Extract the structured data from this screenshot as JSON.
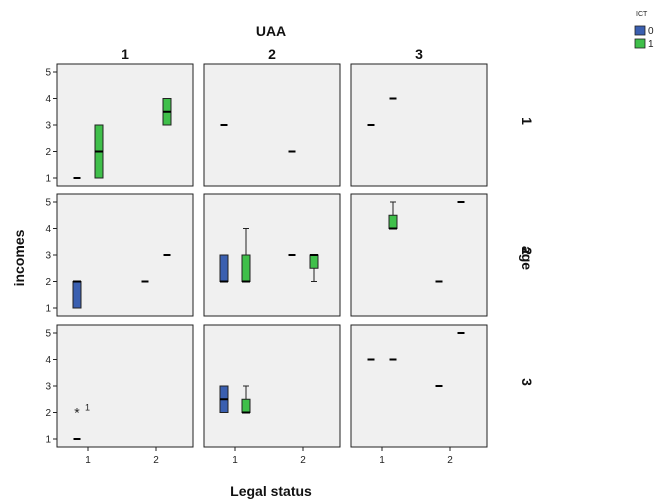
{
  "chart_data": {
    "type": "boxplot",
    "title": "",
    "column_title": "UAA",
    "row_title": "age",
    "xlabel": "Legal status",
    "ylabel": "incomes",
    "ylim": [
      1,
      5
    ],
    "yticks": [
      1,
      2,
      3,
      4,
      5
    ],
    "xticks": [
      1,
      2
    ],
    "grid": false,
    "legend": {
      "title": "ICT",
      "position": "top-right",
      "entries": [
        {
          "label": "0",
          "color": "#3a5fb0"
        },
        {
          "label": "1",
          "color": "#3fbf4a"
        }
      ]
    },
    "columns": [
      "1",
      "2",
      "3"
    ],
    "rows": [
      "1",
      "2",
      "3"
    ],
    "panels": [
      {
        "row": "1",
        "col": "1",
        "boxes": [
          {
            "legal_status": 1,
            "ict": "0",
            "min": 1,
            "q1": 1,
            "median": 1,
            "q3": 1,
            "max": 1
          },
          {
            "legal_status": 1,
            "ict": "1",
            "min": 1,
            "q1": 1,
            "median": 2,
            "q3": 3,
            "max": 3
          },
          {
            "legal_status": 2,
            "ict": "1",
            "min": 3,
            "q1": 3,
            "median": 3.5,
            "q3": 4,
            "max": 4
          }
        ]
      },
      {
        "row": "1",
        "col": "2",
        "boxes": [
          {
            "legal_status": 1,
            "ict": "0",
            "min": 3,
            "q1": 3,
            "median": 3,
            "q3": 3,
            "max": 3
          },
          {
            "legal_status": 2,
            "ict": "0",
            "min": 2,
            "q1": 2,
            "median": 2,
            "q3": 2,
            "max": 2
          }
        ]
      },
      {
        "row": "1",
        "col": "3",
        "boxes": [
          {
            "legal_status": 1,
            "ict": "0",
            "min": 3,
            "q1": 3,
            "median": 3,
            "q3": 3,
            "max": 3
          },
          {
            "legal_status": 1,
            "ict": "1",
            "min": 4,
            "q1": 4,
            "median": 4,
            "q3": 4,
            "max": 4
          }
        ]
      },
      {
        "row": "2",
        "col": "1",
        "boxes": [
          {
            "legal_status": 1,
            "ict": "0",
            "min": 1,
            "q1": 1,
            "median": 2,
            "q3": 2,
            "max": 2
          },
          {
            "legal_status": 2,
            "ict": "0",
            "min": 2,
            "q1": 2,
            "median": 2,
            "q3": 2,
            "max": 2
          },
          {
            "legal_status": 2,
            "ict": "1",
            "min": 3,
            "q1": 3,
            "median": 3,
            "q3": 3,
            "max": 3
          }
        ]
      },
      {
        "row": "2",
        "col": "2",
        "boxes": [
          {
            "legal_status": 1,
            "ict": "0",
            "min": 2,
            "q1": 2,
            "median": 2,
            "q3": 3,
            "max": 3
          },
          {
            "legal_status": 1,
            "ict": "1",
            "min": 2,
            "q1": 2,
            "median": 2,
            "q3": 3,
            "max": 4
          },
          {
            "legal_status": 2,
            "ict": "0",
            "min": 3,
            "q1": 3,
            "median": 3,
            "q3": 3,
            "max": 3
          },
          {
            "legal_status": 2,
            "ict": "1",
            "min": 2,
            "q1": 2.5,
            "median": 3,
            "q3": 3,
            "max": 3
          }
        ]
      },
      {
        "row": "2",
        "col": "3",
        "boxes": [
          {
            "legal_status": 1,
            "ict": "1",
            "min": 4,
            "q1": 4,
            "median": 4,
            "q3": 4.5,
            "max": 5
          },
          {
            "legal_status": 2,
            "ict": "0",
            "min": 2,
            "q1": 2,
            "median": 2,
            "q3": 2,
            "max": 2
          },
          {
            "legal_status": 2,
            "ict": "1",
            "min": 5,
            "q1": 5,
            "median": 5,
            "q3": 5,
            "max": 5
          }
        ]
      },
      {
        "row": "3",
        "col": "1",
        "boxes": [
          {
            "legal_status": 1,
            "ict": "0",
            "min": 1,
            "q1": 1,
            "median": 1,
            "q3": 1,
            "max": 1
          }
        ],
        "outliers": [
          {
            "legal_status": 1,
            "ict": "0",
            "value": 2,
            "marker": "*",
            "label": "1"
          }
        ]
      },
      {
        "row": "3",
        "col": "2",
        "boxes": [
          {
            "legal_status": 1,
            "ict": "0",
            "min": 2,
            "q1": 2,
            "median": 2.5,
            "q3": 3,
            "max": 3
          },
          {
            "legal_status": 1,
            "ict": "1",
            "min": 2,
            "q1": 2,
            "median": 2,
            "q3": 2.5,
            "max": 3
          }
        ]
      },
      {
        "row": "3",
        "col": "3",
        "boxes": [
          {
            "legal_status": 1,
            "ict": "0",
            "min": 4,
            "q1": 4,
            "median": 4,
            "q3": 4,
            "max": 4
          },
          {
            "legal_status": 1,
            "ict": "1",
            "min": 4,
            "q1": 4,
            "median": 4,
            "q3": 4,
            "max": 4
          },
          {
            "legal_status": 2,
            "ict": "0",
            "min": 3,
            "q1": 3,
            "median": 3,
            "q3": 3,
            "max": 3
          },
          {
            "legal_status": 2,
            "ict": "1",
            "min": 5,
            "q1": 5,
            "median": 5,
            "q3": 5,
            "max": 5
          }
        ]
      }
    ]
  }
}
